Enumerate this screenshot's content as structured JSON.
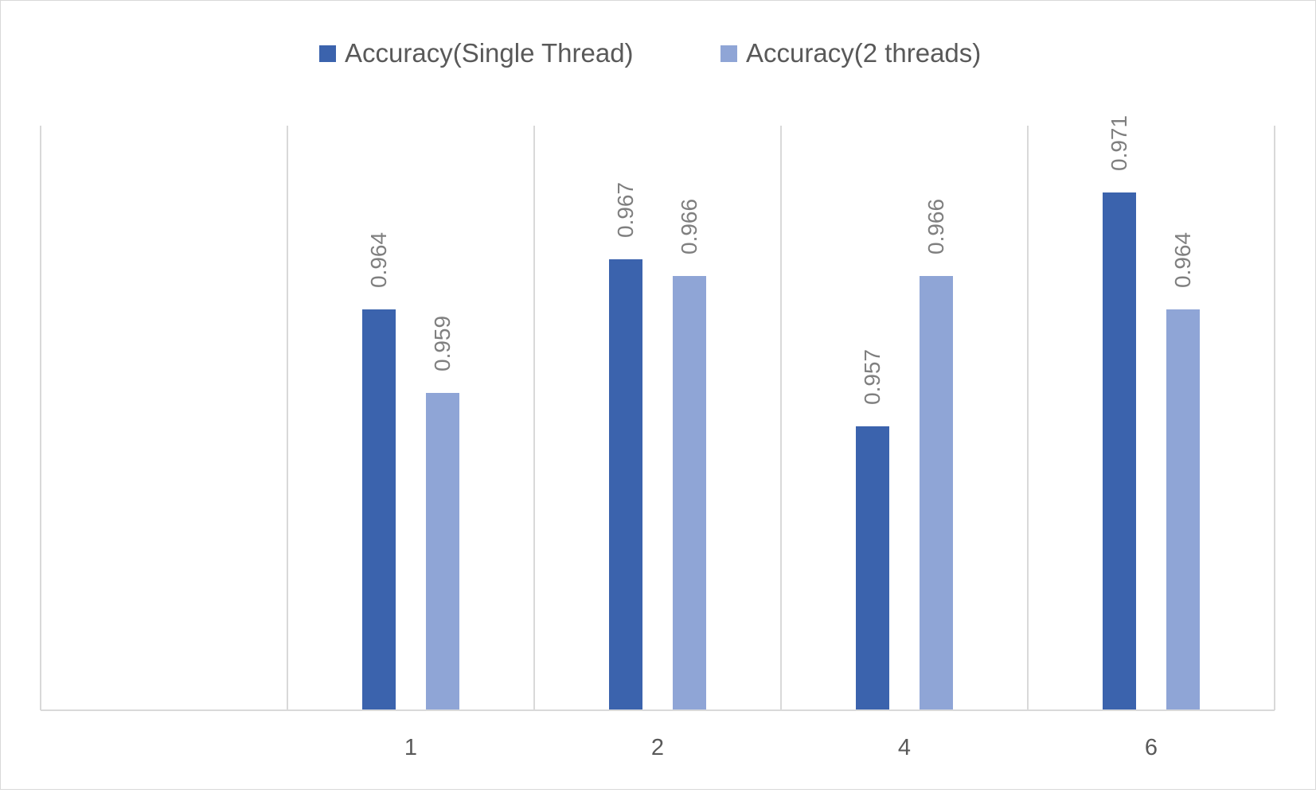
{
  "chart_data": {
    "type": "bar",
    "title": "",
    "xlabel": "",
    "ylabel": "",
    "categories": [
      "",
      "1",
      "2",
      "4",
      "6"
    ],
    "series": [
      {
        "name": "Accuracy(Single Thread)",
        "color": "#3b63ad",
        "values": [
          null,
          0.964,
          0.967,
          0.957,
          0.971
        ]
      },
      {
        "name": "Accuracy(2 threads)",
        "color": "#8fa5d6",
        "values": [
          null,
          0.959,
          0.966,
          0.966,
          0.964
        ]
      }
    ],
    "ylim": [
      0.94,
      0.975
    ],
    "y_axis_visible": false,
    "gridlines": "vertical category separators",
    "legend_position": "top-center",
    "data_labels": "rotated vertical above bars",
    "value_label_color": "#7f7f7f",
    "axis_label_color": "#595959",
    "grid_color": "#d9d9d9"
  }
}
